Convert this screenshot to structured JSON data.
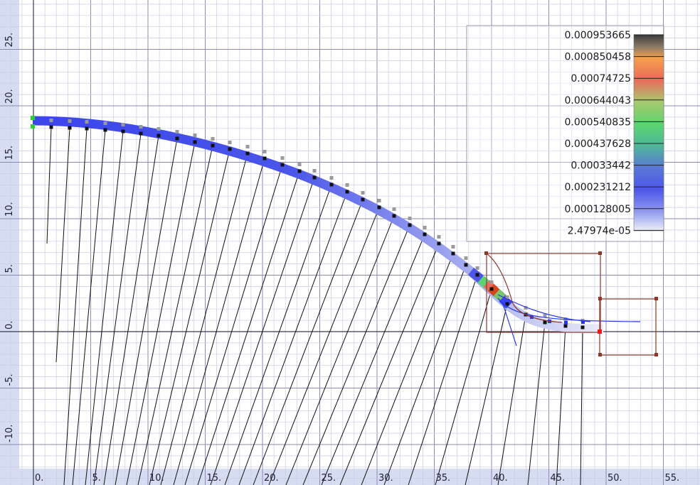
{
  "plot": {
    "x_axis": {
      "ticks": [
        "0.",
        "5.",
        "10.",
        "15.",
        "20.",
        "25.",
        "30.",
        "35.",
        "40.",
        "45.",
        "50.",
        "55."
      ],
      "range": [
        0,
        55
      ]
    },
    "y_axis": {
      "ticks": [
        "-10.",
        "-5.",
        "0.",
        "5.",
        "10.",
        "15.",
        "20.",
        "25."
      ],
      "range": [
        -10,
        25
      ]
    },
    "grid": "on (major + minor)"
  },
  "legend": {
    "labels": [
      "0.000953665",
      "0.000850458",
      "0.00074725",
      "0.000644043",
      "0.000540835",
      "0.000437628",
      "0.00033442",
      "0.000231212",
      "0.000128005",
      "2.47974e-05"
    ],
    "colors": [
      "#4a4a4a",
      "#f2a04a",
      "#e96a5a",
      "#a7c76a",
      "#5bd46f",
      "#4fb59b",
      "#5a78d6",
      "#4d56e8",
      "#8f99ee",
      "#e8ebf7"
    ]
  },
  "colors": {
    "background": "#ffffff",
    "gutter": "#d6dcf2",
    "grid_minor": "#c5c8e2",
    "grid_major": "#8a8db0",
    "beam": "#3b45ec",
    "frame": "#8b3a2a"
  }
}
